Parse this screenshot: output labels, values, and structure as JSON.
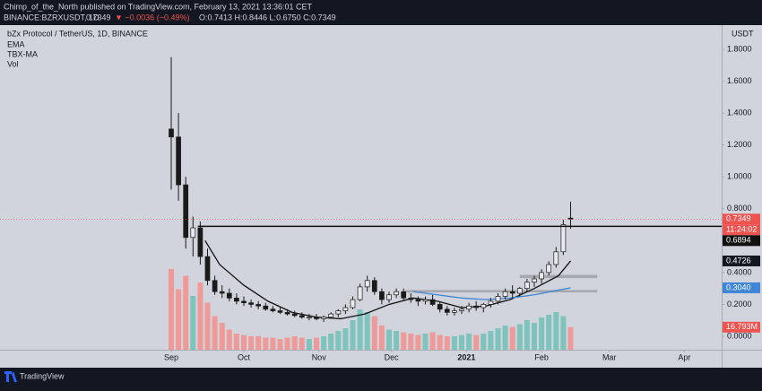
{
  "header": {
    "publisher": "Chimp_of_the_North published on TradingView.com, February 13, 2021 13:36:01 CET",
    "symbol": "BINANCE:BZRXUSDT, 1D",
    "last": "0.7349",
    "change": "▼ −0.0036 (−0.49%)",
    "ohlc": "O:0.7413 H:0.8446 L:0.6750 C:0.7349"
  },
  "footer": {
    "brand": "TradingView"
  },
  "chart_data": {
    "type": "candlestick",
    "title": "bZx Protocol / TetherUS, 1D, BINANCE",
    "currency": "USDT",
    "xlim": [
      -70.74,
      227.41
    ],
    "xticks": [
      {
        "value": 0,
        "label": "Sep"
      },
      {
        "value": 30,
        "label": "Oct"
      },
      {
        "value": 61,
        "label": "Nov"
      },
      {
        "value": 91,
        "label": "Dec"
      },
      {
        "value": 122,
        "label": "2021"
      },
      {
        "value": 153,
        "label": "Feb"
      },
      {
        "value": 181,
        "label": "Mar"
      },
      {
        "value": 212,
        "label": "Apr"
      }
    ],
    "ylim": [
      -0.0844,
      1.9517
    ],
    "yticks": [
      {
        "value": 0,
        "label": "0.0000"
      },
      {
        "value": 0.2,
        "label": "0.2000"
      },
      {
        "value": 0.4,
        "label": "0.4000"
      },
      {
        "value": 0.6,
        "label": "0.6000"
      },
      {
        "value": 0.8,
        "label": "0.8000"
      },
      {
        "value": 1.0,
        "label": "1.0000"
      },
      {
        "value": 1.2,
        "label": "1.2000"
      },
      {
        "value": 1.4,
        "label": "1.4000"
      },
      {
        "value": 1.6,
        "label": "1.6000"
      },
      {
        "value": 1.8,
        "label": "1.8000"
      }
    ],
    "candle_color": "#1a1a1a",
    "up_volume_color": "#7fc4bc",
    "down_volume_color": "#ee9a98",
    "x": [
      0,
      3,
      6,
      9,
      12,
      15,
      18,
      21,
      24,
      27,
      30,
      33,
      36,
      39,
      42,
      45,
      48,
      51,
      54,
      57,
      60,
      63,
      66,
      69,
      72,
      75,
      78,
      81,
      84,
      87,
      90,
      93,
      96,
      99,
      102,
      105,
      108,
      111,
      114,
      117,
      120,
      123,
      126,
      129,
      132,
      135,
      138,
      141,
      144,
      147,
      150,
      153,
      156,
      159,
      162,
      165
    ],
    "open": [
      1.3,
      1.25,
      0.95,
      0.62,
      0.68,
      0.5,
      0.35,
      0.28,
      0.27,
      0.24,
      0.22,
      0.21,
      0.2,
      0.19,
      0.17,
      0.16,
      0.15,
      0.14,
      0.13,
      0.12,
      0.12,
      0.11,
      0.12,
      0.14,
      0.16,
      0.18,
      0.23,
      0.31,
      0.35,
      0.28,
      0.23,
      0.26,
      0.28,
      0.24,
      0.23,
      0.22,
      0.23,
      0.2,
      0.17,
      0.15,
      0.16,
      0.17,
      0.19,
      0.18,
      0.2,
      0.22,
      0.25,
      0.28,
      0.27,
      0.3,
      0.34,
      0.36,
      0.4,
      0.45,
      0.53,
      0.7413
    ],
    "high": [
      1.75,
      1.4,
      1.0,
      0.75,
      0.72,
      0.55,
      0.38,
      0.32,
      0.3,
      0.27,
      0.25,
      0.23,
      0.22,
      0.21,
      0.19,
      0.18,
      0.17,
      0.16,
      0.15,
      0.14,
      0.14,
      0.13,
      0.15,
      0.17,
      0.2,
      0.25,
      0.33,
      0.38,
      0.37,
      0.3,
      0.28,
      0.3,
      0.3,
      0.27,
      0.25,
      0.25,
      0.26,
      0.22,
      0.19,
      0.18,
      0.19,
      0.21,
      0.22,
      0.21,
      0.24,
      0.27,
      0.3,
      0.32,
      0.31,
      0.36,
      0.38,
      0.42,
      0.47,
      0.56,
      0.73,
      0.8446
    ],
    "low": [
      0.92,
      0.85,
      0.55,
      0.5,
      0.45,
      0.32,
      0.26,
      0.24,
      0.22,
      0.2,
      0.19,
      0.18,
      0.17,
      0.16,
      0.15,
      0.14,
      0.13,
      0.12,
      0.11,
      0.1,
      0.1,
      0.09,
      0.11,
      0.12,
      0.14,
      0.17,
      0.22,
      0.28,
      0.26,
      0.2,
      0.21,
      0.24,
      0.22,
      0.21,
      0.19,
      0.2,
      0.19,
      0.15,
      0.13,
      0.13,
      0.14,
      0.15,
      0.16,
      0.15,
      0.18,
      0.2,
      0.23,
      0.24,
      0.25,
      0.28,
      0.31,
      0.33,
      0.38,
      0.43,
      0.51,
      0.675
    ],
    "close": [
      1.25,
      0.95,
      0.62,
      0.68,
      0.5,
      0.35,
      0.28,
      0.27,
      0.24,
      0.22,
      0.21,
      0.2,
      0.19,
      0.17,
      0.16,
      0.15,
      0.14,
      0.13,
      0.12,
      0.12,
      0.11,
      0.12,
      0.14,
      0.16,
      0.18,
      0.23,
      0.31,
      0.35,
      0.28,
      0.23,
      0.26,
      0.28,
      0.24,
      0.23,
      0.22,
      0.23,
      0.2,
      0.17,
      0.15,
      0.16,
      0.17,
      0.19,
      0.18,
      0.2,
      0.22,
      0.25,
      0.28,
      0.27,
      0.3,
      0.34,
      0.36,
      0.4,
      0.45,
      0.53,
      0.7,
      0.7349
    ],
    "volume_name": "Vol",
    "vol_ylim": [
      0,
      80
    ],
    "volume": [
      60,
      45,
      55,
      40,
      50,
      35,
      25,
      20,
      15,
      12,
      11,
      10,
      10,
      9,
      9,
      8,
      9,
      10,
      9,
      8,
      9,
      10,
      12,
      14,
      16,
      22,
      30,
      28,
      25,
      18,
      15,
      14,
      13,
      12,
      11,
      12,
      13,
      11,
      10,
      10,
      11,
      12,
      11,
      12,
      14,
      16,
      18,
      17,
      19,
      22,
      20,
      24,
      26,
      28,
      25,
      16.793
    ],
    "volume_tag": {
      "value": 16.793,
      "label": "16.793M"
    },
    "lines": [
      {
        "name": "EMA",
        "color": "#111111",
        "x": [
          14,
          20,
          30,
          40,
          50,
          60,
          70,
          80,
          90,
          100,
          110,
          120,
          130,
          140,
          150,
          160,
          165
        ],
        "values": [
          0.6,
          0.45,
          0.32,
          0.22,
          0.15,
          0.12,
          0.11,
          0.14,
          0.2,
          0.24,
          0.22,
          0.18,
          0.19,
          0.23,
          0.3,
          0.38,
          0.4726
        ]
      },
      {
        "name": "TBX-MA",
        "color": "#3f86d6",
        "x": [
          100,
          110,
          120,
          130,
          140,
          150,
          160,
          165
        ],
        "values": [
          0.28,
          0.26,
          0.24,
          0.23,
          0.24,
          0.26,
          0.29,
          0.304
        ]
      }
    ],
    "level": {
      "value": 0.6894,
      "label": "0.6894",
      "from": 11,
      "color": "#111111"
    },
    "zones": [
      {
        "from": 144,
        "to": 176,
        "low": 0.365,
        "high": 0.385
      },
      {
        "from": 97,
        "to": 176,
        "low": 0.275,
        "high": 0.29
      }
    ],
    "last_price": {
      "value": 0.7349,
      "label": "0.7349",
      "color": "#ef5350"
    },
    "countdown": "11:24:02",
    "price_tags": [
      {
        "value": 0.4726,
        "label": "0.4726",
        "color": "#131722"
      },
      {
        "value": 0.304,
        "label": "0.3040",
        "color": "#3f86d6"
      }
    ]
  }
}
